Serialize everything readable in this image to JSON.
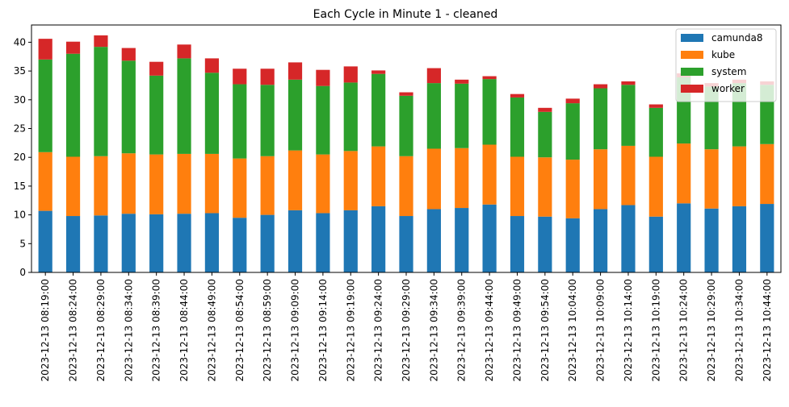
{
  "chart_data": {
    "type": "bar",
    "stacked": true,
    "title": "Each Cycle in Minute 1 - cleaned",
    "xlabel": "",
    "ylabel": "",
    "ylim": [
      0,
      43
    ],
    "yticks": [
      0,
      5,
      10,
      15,
      20,
      25,
      30,
      35,
      40
    ],
    "grid": false,
    "legend_position": "top-right",
    "categories": [
      "2023-12-13 08:19:00",
      "2023-12-13 08:24:00",
      "2023-12-13 08:29:00",
      "2023-12-13 08:34:00",
      "2023-12-13 08:39:00",
      "2023-12-13 08:44:00",
      "2023-12-13 08:49:00",
      "2023-12-13 08:54:00",
      "2023-12-13 08:59:00",
      "2023-12-13 09:09:00",
      "2023-12-13 09:14:00",
      "2023-12-13 09:19:00",
      "2023-12-13 09:24:00",
      "2023-12-13 09:29:00",
      "2023-12-13 09:34:00",
      "2023-12-13 09:39:00",
      "2023-12-13 09:44:00",
      "2023-12-13 09:49:00",
      "2023-12-13 09:54:00",
      "2023-12-13 10:04:00",
      "2023-12-13 10:09:00",
      "2023-12-13 10:14:00",
      "2023-12-13 10:19:00",
      "2023-12-13 10:24:00",
      "2023-12-13 10:29:00",
      "2023-12-13 10:34:00",
      "2023-12-13 10:44:00"
    ],
    "series": [
      {
        "name": "camunda8",
        "color": "#1f77b4",
        "values": [
          10.7,
          9.8,
          9.9,
          10.2,
          10.1,
          10.2,
          10.3,
          9.5,
          10.0,
          10.8,
          10.3,
          10.8,
          11.5,
          9.8,
          11.0,
          11.2,
          11.8,
          9.8,
          9.7,
          9.4,
          11.0,
          11.7,
          9.7,
          12.0,
          11.1,
          11.5,
          11.9
        ]
      },
      {
        "name": "kube",
        "color": "#ff7f0e",
        "values": [
          10.2,
          10.3,
          10.3,
          10.5,
          10.4,
          10.4,
          10.3,
          10.3,
          10.2,
          10.4,
          10.2,
          10.3,
          10.4,
          10.4,
          10.5,
          10.4,
          10.4,
          10.3,
          10.3,
          10.2,
          10.4,
          10.3,
          10.4,
          10.4,
          10.3,
          10.4,
          10.4
        ]
      },
      {
        "name": "system",
        "color": "#2ca02c",
        "values": [
          16.1,
          17.9,
          19.0,
          16.1,
          13.7,
          16.6,
          14.1,
          12.9,
          12.4,
          12.3,
          11.9,
          11.9,
          12.6,
          10.5,
          11.4,
          11.2,
          11.4,
          10.3,
          7.9,
          9.8,
          10.6,
          10.6,
          8.5,
          11.5,
          10.9,
          11.0,
          10.3
        ]
      },
      {
        "name": "worker",
        "color": "#d62728",
        "values": [
          3.6,
          2.1,
          2.0,
          2.2,
          2.4,
          2.4,
          2.5,
          2.7,
          2.8,
          3.0,
          2.8,
          2.8,
          0.6,
          0.6,
          2.6,
          0.7,
          0.5,
          0.6,
          0.7,
          0.8,
          0.7,
          0.6,
          0.6,
          0.7,
          0.6,
          0.6,
          0.6
        ]
      }
    ]
  }
}
